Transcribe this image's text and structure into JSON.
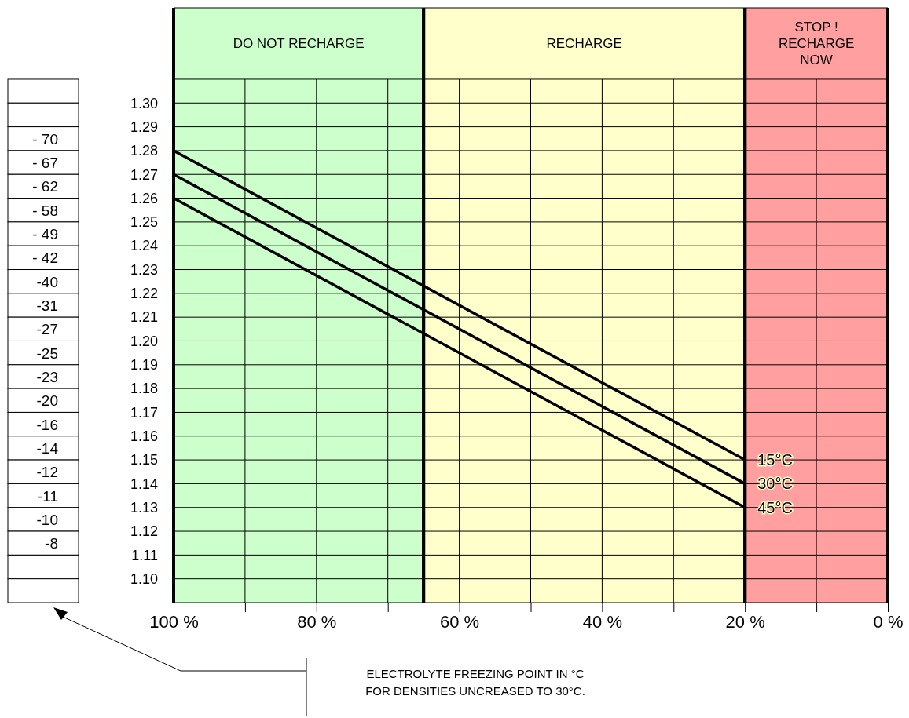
{
  "chart_data": [
    {
      "type": "line",
      "xlim": [
        100,
        0
      ],
      "ylim": [
        1.09,
        1.34
      ],
      "xticks": [
        {
          "value": 100,
          "label": "100 %"
        },
        {
          "value": 90,
          "label": null
        },
        {
          "value": 80,
          "label": "80 %"
        },
        {
          "value": 70,
          "label": null
        },
        {
          "value": 60,
          "label": "60 %"
        },
        {
          "value": 50,
          "label": null
        },
        {
          "value": 40,
          "label": "40 %"
        },
        {
          "value": 30,
          "label": null
        },
        {
          "value": 20,
          "label": "20 %"
        },
        {
          "value": 10,
          "label": null
        },
        {
          "value": 0,
          "label": "0 %"
        }
      ],
      "yticks": [
        {
          "value": 1.1,
          "label": "1.10"
        },
        {
          "value": 1.11,
          "label": "1.11"
        },
        {
          "value": 1.12,
          "label": "1.12"
        },
        {
          "value": 1.13,
          "label": "1.13"
        },
        {
          "value": 1.14,
          "label": "1.14"
        },
        {
          "value": 1.15,
          "label": "1.15"
        },
        {
          "value": 1.16,
          "label": "1.16"
        },
        {
          "value": 1.17,
          "label": "1.17"
        },
        {
          "value": 1.18,
          "label": "1.18"
        },
        {
          "value": 1.19,
          "label": "1.19"
        },
        {
          "value": 1.2,
          "label": "1.20"
        },
        {
          "value": 1.21,
          "label": "1.21"
        },
        {
          "value": 1.22,
          "label": "1.22"
        },
        {
          "value": 1.23,
          "label": "1.23"
        },
        {
          "value": 1.24,
          "label": "1.24"
        },
        {
          "value": 1.25,
          "label": "1.25"
        },
        {
          "value": 1.26,
          "label": "1.26"
        },
        {
          "value": 1.27,
          "label": "1.27"
        },
        {
          "value": 1.28,
          "label": "1.28"
        },
        {
          "value": 1.29,
          "label": "1.29"
        },
        {
          "value": 1.3,
          "label": "1.30"
        },
        {
          "value": 1.31,
          "label": null
        }
      ],
      "grid": true,
      "legend": false,
      "marker": "none",
      "line_style": "solid",
      "x": [
        100,
        20
      ],
      "series": [
        {
          "name": "15°C",
          "color": "#000000",
          "values": [
            1.28,
            1.15
          ]
        },
        {
          "name": "30°C",
          "color": "#000000",
          "values": [
            1.27,
            1.14
          ]
        },
        {
          "name": "45°C",
          "color": "#000000",
          "values": [
            1.26,
            1.13
          ]
        }
      ],
      "bands": [
        {
          "axis": "x",
          "from": 100,
          "to": 65,
          "label": "DO NOT RECHARGE",
          "color": "#ccffcc"
        },
        {
          "axis": "x",
          "from": 65,
          "to": 20,
          "label": "RECHARGE",
          "color": "#ffffcc"
        },
        {
          "axis": "x",
          "from": 20,
          "to": 0,
          "label": "STOP ! RECHARGE NOW",
          "color": "#ff9f9f"
        }
      ]
    },
    {
      "type": "other",
      "categories": [
        null,
        null,
        "- 70",
        "- 67",
        "- 62",
        "- 58",
        "- 49",
        "- 42",
        "-40",
        "-31",
        "-27",
        "-25",
        "-23",
        "-20",
        "-16",
        "-14",
        "-12",
        "-11",
        "-10",
        "-8",
        null,
        null
      ],
      "annotations": [
        "ELECTROLYTE FREEZING POINT IN °C",
        "FOR DENSITIES UNCREASED TO 30°C."
      ]
    }
  ]
}
